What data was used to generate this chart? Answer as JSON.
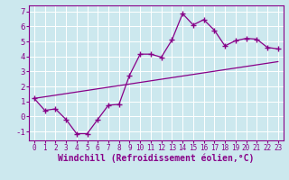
{
  "xlabel": "Windchill (Refroidissement éolien,°C)",
  "xlim": [
    -0.5,
    23.5
  ],
  "ylim": [
    -1.6,
    7.4
  ],
  "xticks": [
    0,
    1,
    2,
    3,
    4,
    5,
    6,
    7,
    8,
    9,
    10,
    11,
    12,
    13,
    14,
    15,
    16,
    17,
    18,
    19,
    20,
    21,
    22,
    23
  ],
  "yticks": [
    -1,
    0,
    1,
    2,
    3,
    4,
    5,
    6,
    7
  ],
  "background_color": "#cce8ee",
  "line_color": "#880088",
  "line1_x": [
    0,
    1,
    2,
    3,
    4,
    5,
    6,
    7,
    8,
    9,
    10,
    11,
    12,
    13,
    14,
    15,
    16,
    17,
    18,
    19,
    20,
    21,
    22,
    23
  ],
  "line1_y": [
    1.2,
    0.4,
    0.5,
    -0.2,
    -1.15,
    -1.15,
    -0.2,
    0.75,
    0.8,
    2.75,
    4.15,
    4.15,
    3.95,
    5.1,
    6.85,
    6.1,
    6.45,
    5.75,
    4.7,
    5.05,
    5.2,
    5.15,
    4.6,
    4.5
  ],
  "line2_x": [
    0,
    23
  ],
  "line2_y": [
    1.2,
    3.65
  ],
  "xlabel_fontsize": 7.0,
  "tick_fontsize_x": 5.5,
  "tick_fontsize_y": 6.5
}
